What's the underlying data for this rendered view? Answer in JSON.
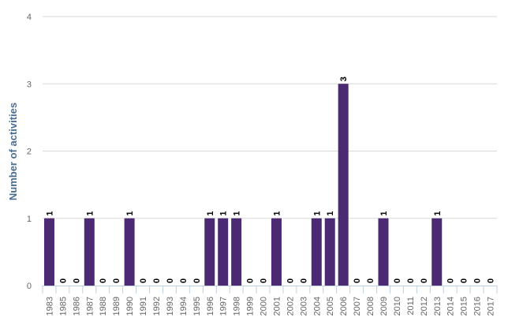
{
  "chart_data": {
    "type": "bar",
    "title": "",
    "xlabel": "",
    "ylabel": "Number of activities",
    "ylim": [
      0,
      4
    ],
    "yticks": [
      "0",
      "1",
      "2",
      "3",
      "4"
    ],
    "grid": true,
    "bar_color": "#4b2a73",
    "categories": [
      "1983",
      "1985",
      "1986",
      "1987",
      "1988",
      "1989",
      "1990",
      "1991",
      "1992",
      "1993",
      "1994",
      "1995",
      "1996",
      "1997",
      "1998",
      "1999",
      "2000",
      "2001",
      "2002",
      "2003",
      "2004",
      "2005",
      "2006",
      "2007",
      "2008",
      "2009",
      "2010",
      "2011",
      "2012",
      "2013",
      "2014",
      "2015",
      "2016",
      "2017"
    ],
    "values": [
      1,
      0,
      0,
      1,
      0,
      0,
      1,
      0,
      0,
      0,
      0,
      0,
      1,
      1,
      1,
      0,
      0,
      1,
      0,
      0,
      1,
      1,
      3,
      0,
      0,
      1,
      0,
      0,
      0,
      1,
      0,
      0,
      0,
      0
    ],
    "data_labels": [
      "1",
      "0",
      "0",
      "1",
      "0",
      "0",
      "1",
      "0",
      "0",
      "0",
      "0",
      "0",
      "1",
      "1",
      "1",
      "0",
      "0",
      "1",
      "0",
      "0",
      "1",
      "1",
      "3",
      "0",
      "0",
      "1",
      "0",
      "0",
      "0",
      "1",
      "0",
      "0",
      "0",
      "0"
    ]
  }
}
